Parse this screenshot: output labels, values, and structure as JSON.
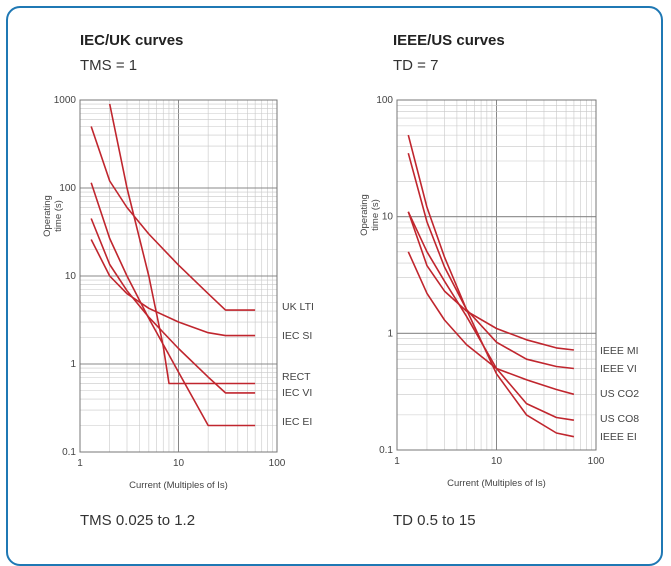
{
  "chart_data": [
    {
      "type": "line",
      "title": "IEC/UK curves",
      "subtitle": "TMS = 1",
      "xlabel": "Current (Multiples of Is)",
      "ylabel": "Operating time (s)",
      "xscale": "log",
      "yscale": "log",
      "xlim": [
        1,
        100
      ],
      "ylim": [
        0.1,
        1000
      ],
      "xticks": [
        "1",
        "10",
        "100"
      ],
      "yticks": [
        "0.1",
        "1",
        "10",
        "100",
        "1000"
      ],
      "footer": "TMS 0.025 to 1.2",
      "grid": true,
      "line_color": "#c0262e",
      "series": [
        {
          "name": "UK LTI",
          "x": [
            1.3,
            2,
            3,
            5,
            10,
            20,
            30,
            60
          ],
          "y": [
            500,
            120,
            60,
            30,
            13.3,
            6.3,
            4.1,
            4.1
          ]
        },
        {
          "name": "IEC SI",
          "x": [
            1.3,
            2,
            3,
            5,
            10,
            20,
            30,
            60
          ],
          "y": [
            26,
            10,
            6.3,
            4.3,
            3.0,
            2.27,
            2.1,
            2.1
          ]
        },
        {
          "name": "RECT",
          "x": [
            2,
            3,
            5,
            7,
            8,
            10,
            30,
            60
          ],
          "y": [
            900,
            100,
            10,
            1.6,
            0.6,
            0.6,
            0.6,
            0.6
          ]
        },
        {
          "name": "IEC VI",
          "x": [
            1.3,
            2,
            3,
            5,
            10,
            20,
            30,
            60
          ],
          "y": [
            45,
            13.5,
            6.8,
            3.4,
            1.5,
            0.71,
            0.47,
            0.47
          ]
        },
        {
          "name": "IEC EI",
          "x": [
            1.3,
            2,
            3,
            5,
            10,
            20,
            30,
            60
          ],
          "y": [
            115,
            26.7,
            10,
            3.3,
            0.81,
            0.2,
            0.2,
            0.2
          ]
        }
      ]
    },
    {
      "type": "line",
      "title": "IEEE/US curves",
      "subtitle": "TD = 7",
      "xlabel": "Current (Multiples of Is)",
      "ylabel": "Operating time (s)",
      "xscale": "log",
      "yscale": "log",
      "xlim": [
        1,
        100
      ],
      "ylim": [
        0.1,
        100
      ],
      "xticks": [
        "1",
        "10",
        "100"
      ],
      "yticks": [
        "0.1",
        "1",
        "10",
        "100"
      ],
      "footer": "TD 0.5 to 15",
      "grid": true,
      "line_color": "#c0262e",
      "series": [
        {
          "name": "IEEE MI",
          "x": [
            1.3,
            2,
            3,
            5,
            10,
            20,
            40,
            60
          ],
          "y": [
            11,
            3.8,
            2.3,
            1.55,
            1.1,
            0.88,
            0.75,
            0.72
          ]
        },
        {
          "name": "IEEE VI",
          "x": [
            1.3,
            2,
            3,
            5,
            10,
            20,
            40,
            60
          ],
          "y": [
            35,
            9,
            3.7,
            1.6,
            0.84,
            0.6,
            0.52,
            0.5
          ]
        },
        {
          "name": "US CO2",
          "x": [
            1.3,
            2,
            3,
            5,
            10,
            20,
            40,
            60
          ],
          "y": [
            5,
            2.2,
            1.3,
            0.8,
            0.5,
            0.4,
            0.33,
            0.3
          ]
        },
        {
          "name": "US CO8",
          "x": [
            1.3,
            2,
            3,
            5,
            10,
            20,
            40,
            60
          ],
          "y": [
            11,
            5,
            2.8,
            1.4,
            0.5,
            0.25,
            0.19,
            0.18
          ]
        },
        {
          "name": "IEEE EI",
          "x": [
            1.3,
            2,
            3,
            5,
            10,
            20,
            40,
            60
          ],
          "y": [
            50,
            12,
            4.5,
            1.6,
            0.45,
            0.2,
            0.14,
            0.13
          ]
        }
      ]
    }
  ]
}
